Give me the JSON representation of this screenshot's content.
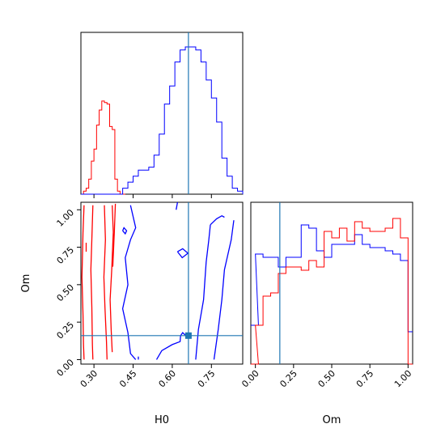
{
  "chart_data": [
    {
      "panel": "H0 marginal",
      "type": "histogram",
      "xlim": [
        0.25,
        0.87
      ],
      "truth": 0.662,
      "series": [
        {
          "color": "#ff0000",
          "step": 0.01,
          "bin_starts": [
            0.25,
            0.26,
            0.27,
            0.28,
            0.29,
            0.3,
            0.31,
            0.32,
            0.33,
            0.34,
            0.35,
            0.36,
            0.37,
            0.38,
            0.39,
            0.4,
            0.41
          ],
          "counts": [
            0,
            2,
            4,
            10,
            22,
            30,
            46,
            56,
            62,
            61,
            60,
            45,
            43,
            10,
            2,
            0,
            0
          ]
        },
        {
          "color": "#0000ff",
          "step": 0.02,
          "bin_starts": [
            0.25,
            0.27,
            0.29,
            0.31,
            0.33,
            0.35,
            0.37,
            0.39,
            0.41,
            0.43,
            0.45,
            0.47,
            0.49,
            0.51,
            0.53,
            0.55,
            0.57,
            0.59,
            0.61,
            0.63,
            0.65,
            0.67,
            0.69,
            0.71,
            0.73,
            0.75,
            0.77,
            0.79,
            0.81,
            0.83,
            0.85
          ],
          "counts": [
            0,
            0,
            0,
            0,
            0,
            0,
            0,
            0,
            4,
            8,
            12,
            16,
            16,
            18,
            26,
            40,
            60,
            72,
            88,
            96,
            98,
            98,
            96,
            88,
            76,
            64,
            48,
            24,
            12,
            4,
            2
          ]
        }
      ]
    },
    {
      "panel": "Om marginal",
      "type": "histogram",
      "xlim": [
        -0.03,
        1.03
      ],
      "xlabel": "Om",
      "ticks": [
        "0.00",
        "0.25",
        "0.50",
        "0.75",
        "1.00"
      ],
      "tick_values": [
        0,
        0.25,
        0.5,
        0.75,
        1.0
      ],
      "truth": 0.16,
      "series": [
        {
          "color": "#0000ff",
          "step": 0.05,
          "bin_starts": [
            -0.03,
            0.0,
            0.05,
            0.1,
            0.15,
            0.2,
            0.25,
            0.3,
            0.35,
            0.4,
            0.45,
            0.5,
            0.55,
            0.6,
            0.65,
            0.7,
            0.75,
            0.8,
            0.85,
            0.9,
            0.95,
            1.0
          ],
          "counts": [
            0.24,
            0.68,
            0.66,
            0.66,
            0.6,
            0.66,
            0.66,
            0.86,
            0.84,
            0.7,
            0.66,
            0.74,
            0.74,
            0.74,
            0.8,
            0.74,
            0.72,
            0.72,
            0.7,
            0.68,
            0.64,
            0.2
          ]
        },
        {
          "color": "#ff0000",
          "step": 0.05,
          "bin_starts": [
            -0.03,
            0.0,
            0.05,
            0.1,
            0.15,
            0.2,
            0.25,
            0.3,
            0.35,
            0.4,
            0.45,
            0.5,
            0.55,
            0.6,
            0.65,
            0.7,
            0.75,
            0.8,
            0.85,
            0.9,
            0.95,
            1.0
          ],
          "counts": [
            0,
            0.24,
            0.42,
            0.44,
            0.56,
            0.6,
            0.6,
            0.58,
            0.64,
            0.6,
            0.82,
            0.78,
            0.84,
            0.76,
            0.88,
            0.84,
            0.82,
            0.82,
            0.84,
            0.9,
            0.78,
            0
          ]
        }
      ]
    },
    {
      "panel": "H0 vs Om joint",
      "type": "contour",
      "xlim": [
        0.25,
        0.87
      ],
      "ylim": [
        -0.03,
        1.05
      ],
      "xlabel": "H0",
      "ylabel": "Om",
      "xticks": [
        "0.30",
        "0.45",
        "0.60",
        "0.75"
      ],
      "xtick_values": [
        0.3,
        0.45,
        0.6,
        0.75
      ],
      "yticks": [
        "0.00",
        "0.25",
        "0.50",
        "0.75",
        "1.00"
      ],
      "ytick_values": [
        0,
        0.25,
        0.5,
        0.75,
        1.0
      ],
      "truth": {
        "H0": 0.662,
        "Om": 0.16
      },
      "series": [
        {
          "color": "#ff0000",
          "contours": [
            [
              [
                0.262,
                1.03
              ],
              [
                0.258,
                0.85
              ],
              [
                0.254,
                0.55
              ],
              [
                0.258,
                0.3
              ],
              [
                0.26,
                0.1
              ],
              [
                0.262,
                0.0
              ]
            ],
            [
              [
                0.296,
                1.03
              ],
              [
                0.292,
                0.8
              ],
              [
                0.288,
                0.6
              ],
              [
                0.292,
                0.35
              ],
              [
                0.294,
                0.1
              ],
              [
                0.296,
                0.0
              ]
            ],
            [
              [
                0.34,
                1.03
              ],
              [
                0.344,
                0.8
              ],
              [
                0.338,
                0.55
              ],
              [
                0.342,
                0.35
              ],
              [
                0.348,
                0.12
              ],
              [
                0.35,
                0.0
              ]
            ],
            [
              [
                0.37,
                1.03
              ],
              [
                0.374,
                0.85
              ],
              [
                0.368,
                0.6
              ],
              [
                0.362,
                0.4
              ],
              [
                0.366,
                0.2
              ],
              [
                0.37,
                0.05
              ]
            ],
            [
              [
                0.382,
                1.04
              ],
              [
                0.378,
                0.85
              ],
              [
                0.372,
                0.62
              ]
            ],
            [
              [
                0.27,
                0.78
              ],
              [
                0.27,
                0.72
              ]
            ]
          ]
        },
        {
          "color": "#0000ff",
          "contours": [
            [
              [
                0.44,
                1.03
              ],
              [
                0.46,
                0.88
              ],
              [
                0.44,
                0.8
              ],
              [
                0.42,
                0.68
              ],
              [
                0.43,
                0.5
              ],
              [
                0.41,
                0.34
              ],
              [
                0.43,
                0.18
              ],
              [
                0.44,
                0.04
              ],
              [
                0.46,
                0.0
              ]
            ],
            [
              [
                0.41,
                0.86
              ],
              [
                0.42,
                0.84
              ],
              [
                0.425,
                0.86
              ],
              [
                0.415,
                0.88
              ],
              [
                0.41,
                0.86
              ]
            ],
            [
              [
                0.54,
                0.0
              ],
              [
                0.56,
                0.06
              ],
              [
                0.6,
                0.1
              ],
              [
                0.63,
                0.12
              ],
              [
                0.632,
                0.16
              ],
              [
                0.64,
                0.18
              ],
              [
                0.652,
                0.16
              ]
            ],
            [
              [
                0.746,
                0.9
              ],
              [
                0.74,
                0.8
              ],
              [
                0.73,
                0.65
              ],
              [
                0.72,
                0.4
              ],
              [
                0.7,
                0.2
              ],
              [
                0.69,
                0.0
              ]
            ],
            [
              [
                0.836,
                0.93
              ],
              [
                0.826,
                0.8
              ],
              [
                0.8,
                0.6
              ],
              [
                0.79,
                0.4
              ],
              [
                0.776,
                0.2
              ],
              [
                0.76,
                0.0
              ]
            ],
            [
              [
                0.746,
                0.9
              ],
              [
                0.77,
                0.94
              ],
              [
                0.79,
                0.96
              ],
              [
                0.8,
                0.95
              ]
            ],
            [
              [
                0.62,
                0.72
              ],
              [
                0.638,
                0.68
              ],
              [
                0.66,
                0.71
              ],
              [
                0.64,
                0.74
              ],
              [
                0.62,
                0.72
              ]
            ],
            [
              [
                0.615,
                1.0
              ],
              [
                0.62,
                1.05
              ]
            ],
            [
              [
                0.47,
                0.0
              ],
              [
                0.47,
                0.02
              ]
            ]
          ]
        }
      ]
    }
  ]
}
